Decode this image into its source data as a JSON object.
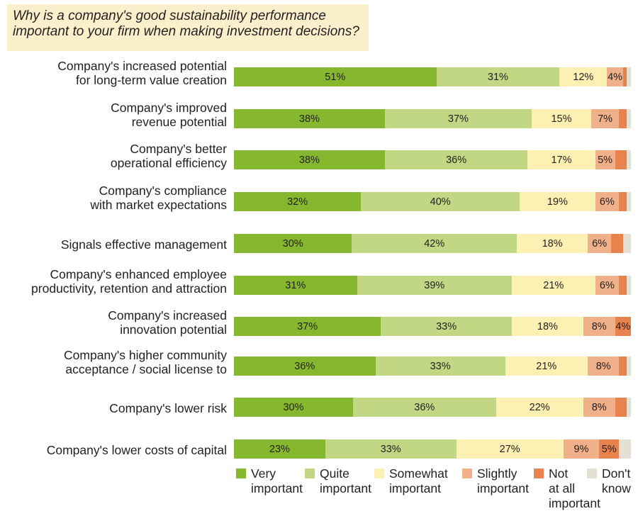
{
  "question": {
    "line1": "Why is a company's good sustainability performance",
    "line2": "important to your firm when making investment decisions?"
  },
  "colors": {
    "very": "#86b82f",
    "quite": "#c2d784",
    "somewhat": "#fcf0b2",
    "slightly": "#efb08a",
    "not_at_all": "#e8834e",
    "dont_know": "#e4e1d4"
  },
  "chart_data": {
    "type": "bar",
    "orientation": "horizontal",
    "stacked": true,
    "categories": [
      [
        "Company's increased potential",
        "for long-term value creation"
      ],
      [
        "Company's improved",
        "revenue potential"
      ],
      [
        "Company's better",
        "operational efficiency"
      ],
      [
        "Company's compliance",
        "with market expectations"
      ],
      [
        "Signals effective management"
      ],
      [
        "Company's enhanced employee",
        "productivity, retention and attraction"
      ],
      [
        "Company's increased",
        "innovation potential"
      ],
      [
        "Company's higher community",
        "acceptance / social license to"
      ],
      [
        "Company's lower risk"
      ],
      [
        "Company's lower costs of capital"
      ]
    ],
    "series": [
      {
        "name": "Very important",
        "key": "very",
        "values": [
          51,
          38,
          38,
          32,
          30,
          31,
          37,
          36,
          30,
          23
        ]
      },
      {
        "name": "Quite important",
        "key": "quite",
        "values": [
          31,
          37,
          36,
          40,
          42,
          39,
          33,
          33,
          36,
          33
        ]
      },
      {
        "name": "Somewhat important",
        "key": "somewhat",
        "values": [
          12,
          15,
          17,
          19,
          18,
          21,
          18,
          21,
          22,
          27
        ]
      },
      {
        "name": "Slightly important",
        "key": "slightly",
        "values": [
          4,
          7,
          5,
          6,
          6,
          6,
          8,
          8,
          8,
          9
        ]
      },
      {
        "name": "Not at all important",
        "key": "not_at_all",
        "values": [
          1,
          2,
          3,
          2,
          3,
          2,
          4,
          2,
          3,
          5
        ]
      },
      {
        "name": "Don't know",
        "key": "dont_know",
        "values": [
          1,
          1,
          1,
          1,
          2,
          1,
          0,
          1,
          1,
          3
        ]
      }
    ],
    "data_labels": [
      [
        "51%",
        "31%",
        "12%",
        "4%",
        "",
        ""
      ],
      [
        "38%",
        "37%",
        "15%",
        "7%",
        "",
        ""
      ],
      [
        "38%",
        "36%",
        "17%",
        "5%",
        "",
        ""
      ],
      [
        "32%",
        "40%",
        "19%",
        "6%",
        "",
        ""
      ],
      [
        "30%",
        "42%",
        "18%",
        "6%",
        "",
        ""
      ],
      [
        "31%",
        "39%",
        "21%",
        "6%",
        "",
        ""
      ],
      [
        "37%",
        "33%",
        "18%",
        "8%",
        "4%",
        ""
      ],
      [
        "36%",
        "33%",
        "21%",
        "8%",
        "",
        ""
      ],
      [
        "30%",
        "36%",
        "22%",
        "8%",
        "",
        ""
      ],
      [
        "23%",
        "33%",
        "27%",
        "9%",
        "5%",
        ""
      ]
    ],
    "legend": {
      "position": "bottom",
      "entries": [
        {
          "key": "very",
          "lines": [
            "Very",
            "important"
          ]
        },
        {
          "key": "quite",
          "lines": [
            "Quite",
            "important"
          ]
        },
        {
          "key": "somewhat",
          "lines": [
            "Somewhat",
            "important"
          ]
        },
        {
          "key": "slightly",
          "lines": [
            "Slightly",
            "important"
          ]
        },
        {
          "key": "not_at_all",
          "lines": [
            "Not",
            "at all",
            "important"
          ]
        },
        {
          "key": "dont_know",
          "lines": [
            "Don't",
            "know"
          ]
        }
      ]
    },
    "xlim": [
      0,
      100
    ],
    "grid": false
  }
}
